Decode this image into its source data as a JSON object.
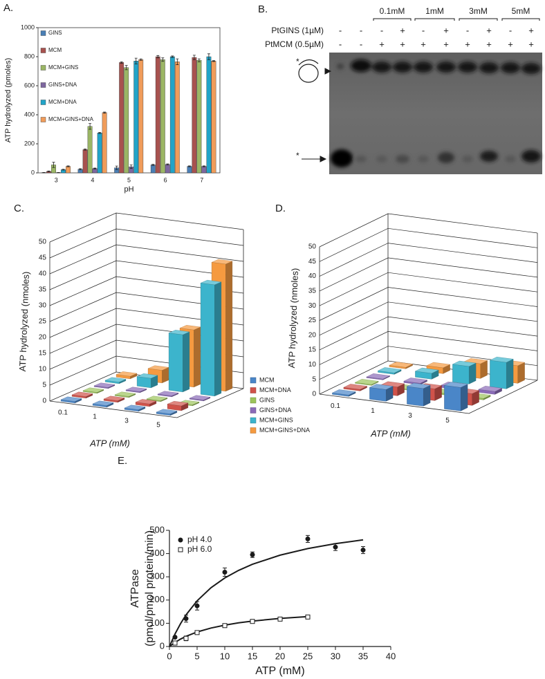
{
  "chart_data": [
    {
      "type": "bar",
      "label": "A.",
      "ylabel": "ATP hydrolyzed (pmoles)",
      "xlabel": "pH",
      "categories": [
        "3",
        "4",
        "5",
        "6",
        "7"
      ],
      "series": [
        {
          "name": "GINS",
          "color": "#4a7fb5",
          "values": [
            2,
            25,
            35,
            55,
            45
          ],
          "errors": [
            1,
            4,
            12,
            4,
            3
          ]
        },
        {
          "name": "MCM",
          "color": "#a8524f",
          "values": [
            10,
            160,
            760,
            800,
            795
          ],
          "errors": [
            3,
            4,
            5,
            8,
            15
          ]
        },
        {
          "name": "MCM+GINS",
          "color": "#9bb665",
          "values": [
            55,
            320,
            725,
            780,
            775
          ],
          "errors": [
            18,
            20,
            15,
            12,
            10
          ]
        },
        {
          "name": "GINS+DNA",
          "color": "#7e67a0",
          "values": [
            2,
            30,
            42,
            58,
            45
          ],
          "errors": [
            1,
            3,
            12,
            4,
            3
          ]
        },
        {
          "name": "MCM+DNA",
          "color": "#21a4c8",
          "values": [
            22,
            275,
            770,
            800,
            800
          ],
          "errors": [
            3,
            4,
            20,
            5,
            20
          ]
        },
        {
          "name": "MCM+GINS+DNA",
          "color": "#f09c5a",
          "values": [
            45,
            415,
            780,
            765,
            770
          ],
          "errors": [
            3,
            4,
            5,
            20,
            3
          ]
        }
      ],
      "ylim": [
        0,
        1000
      ],
      "yticks": [
        0,
        200,
        400,
        600,
        800,
        1000
      ],
      "legend": "upper left"
    },
    {
      "type": "bar3d",
      "label": "C.",
      "zlabel": "ATP hydrolyzed (nmoles)",
      "xlabel": "ATP (mM)",
      "categories": [
        "0.1",
        "1",
        "3",
        "5"
      ],
      "series": [
        {
          "name": "MCM",
          "color": "#4a86c8",
          "values": [
            0.5,
            0.5,
            0.5,
            0.5
          ]
        },
        {
          "name": "MCM+DNA",
          "color": "#d0524a",
          "values": [
            0.5,
            0.5,
            0.8,
            1.5
          ]
        },
        {
          "name": "GINS",
          "color": "#9cc45a",
          "values": [
            0.3,
            0.3,
            0.3,
            0.3
          ]
        },
        {
          "name": "GINS+DNA",
          "color": "#8a6bb8",
          "values": [
            0.3,
            0.3,
            0.3,
            0.3
          ]
        },
        {
          "name": "MCM+GINS",
          "color": "#3cb4cc",
          "values": [
            0.5,
            3,
            18,
            35
          ]
        },
        {
          "name": "MCM+GINS+DNA",
          "color": "#f59a40",
          "values": [
            0.8,
            4,
            18,
            40
          ]
        }
      ],
      "zlim": [
        0,
        50
      ],
      "zticks": [
        0,
        5,
        10,
        15,
        20,
        25,
        30,
        35,
        40,
        45,
        50
      ],
      "legend": "right"
    },
    {
      "type": "bar3d",
      "label": "D.",
      "zlabel": "ATP hydrolyzed (nmoles)",
      "xlabel": "ATP (mM)",
      "categories": [
        "0.1",
        "1",
        "3",
        "5"
      ],
      "series": [
        {
          "color": "#4a86c8",
          "values": [
            0.5,
            4,
            6,
            8
          ]
        },
        {
          "color": "#d0524a",
          "values": [
            0.5,
            3,
            4,
            4
          ]
        },
        {
          "color": "#9cc45a",
          "values": [
            0.3,
            0.3,
            0.5,
            0.5
          ]
        },
        {
          "color": "#8a6bb8",
          "values": [
            0.3,
            0.5,
            0.8,
            1
          ]
        },
        {
          "color": "#3cb4cc",
          "values": [
            0.5,
            2,
            6,
            9
          ]
        },
        {
          "color": "#f59a40",
          "values": [
            0.5,
            2,
            5,
            6
          ]
        }
      ],
      "zlim": [
        0,
        50
      ],
      "zticks": [
        0,
        5,
        10,
        15,
        20,
        25,
        30,
        35,
        40,
        45,
        50
      ]
    },
    {
      "type": "scatter",
      "label": "E.",
      "xlabel": "ATP (mM)",
      "ylabel": [
        "ATPase",
        "(pmol/pmol protein/min)"
      ],
      "xlim": [
        0,
        40
      ],
      "xticks": [
        0,
        5,
        10,
        15,
        20,
        25,
        30,
        35,
        40
      ],
      "ylim": [
        0,
        500
      ],
      "yticks": [
        0,
        100,
        200,
        300,
        400,
        500
      ],
      "legend": "upper left",
      "series": [
        {
          "type": "line",
          "color": "#1a1a1a",
          "x": [
            0,
            1,
            2,
            3,
            5,
            7.5,
            10,
            12.5,
            15,
            20,
            25,
            30,
            35
          ],
          "values": [
            0,
            53.6,
            98.3,
            136.2,
            196.7,
            252.9,
            295,
            327.8,
            354,
            393.3,
            421.4,
            442.5,
            458.9
          ]
        },
        {
          "type": "line",
          "color": "#1a1a1a",
          "x": [
            0,
            1,
            2,
            3,
            5,
            7.5,
            10,
            12.5,
            15,
            20,
            25
          ],
          "values": [
            0,
            17.5,
            31.8,
            43.8,
            62.5,
            79.5,
            92.1,
            101.7,
            109.4,
            120.7,
            128.7
          ]
        },
        {
          "name": "pH 4.0",
          "marker": "circle",
          "color": "#1a1a1a",
          "fill": "#1a1a1a",
          "x": [
            1,
            3,
            5,
            10,
            15,
            25,
            30,
            35
          ],
          "values": [
            40,
            120,
            175,
            320,
            395,
            463,
            428,
            415
          ],
          "errors": [
            5,
            15,
            18,
            18,
            12,
            15,
            15,
            15
          ]
        },
        {
          "name": "pH 6.0",
          "marker": "square",
          "color": "#1a1a1a",
          "fill": "#ffffff",
          "x": [
            1,
            3,
            5,
            10,
            15,
            20,
            25
          ],
          "values": [
            15,
            35,
            60,
            90,
            108,
            118,
            127
          ],
          "errors": [
            3,
            10,
            3,
            8,
            8,
            5,
            7
          ]
        }
      ]
    }
  ],
  "gel": {
    "label": "B.",
    "concentrations": [
      "0.1mM",
      "1mM",
      "3mM",
      "5mM"
    ],
    "rows": [
      {
        "name": "PtGINS (1µM)",
        "signs": [
          "-",
          "-",
          "-",
          "+",
          "-",
          "+",
          "-",
          "+",
          "-",
          "+"
        ]
      },
      {
        "name": "PtMCM (0.5µM)",
        "signs": [
          "-",
          "-",
          "+",
          "+",
          "+",
          "+",
          "+",
          "+",
          "+",
          "+"
        ]
      }
    ],
    "markers": [
      "*",
      "*"
    ]
  }
}
